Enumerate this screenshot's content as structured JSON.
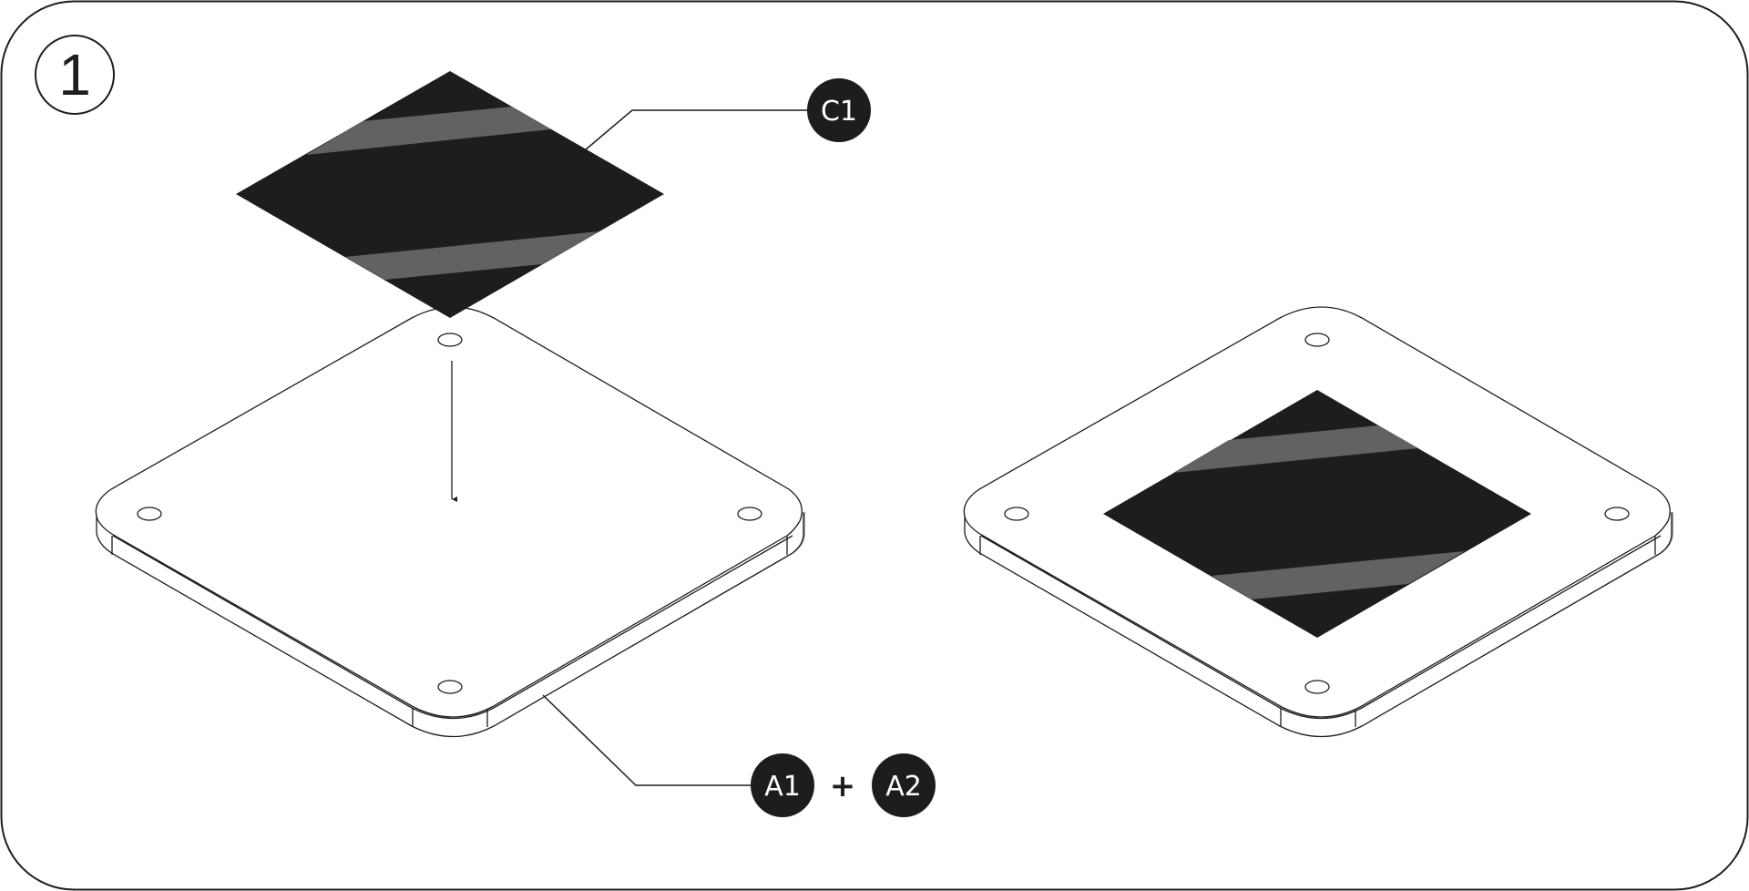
{
  "step": {
    "number": "1"
  },
  "callouts": {
    "c1": "C1",
    "a1": "A1",
    "plus": "+",
    "a2": "A2"
  },
  "colors": {
    "ink": "#1d1d1b",
    "stripe": "#626262",
    "shadow": "#9d9d9d",
    "frame": "#1d1d1b"
  },
  "icons": [
    "down-arrow-icon"
  ]
}
